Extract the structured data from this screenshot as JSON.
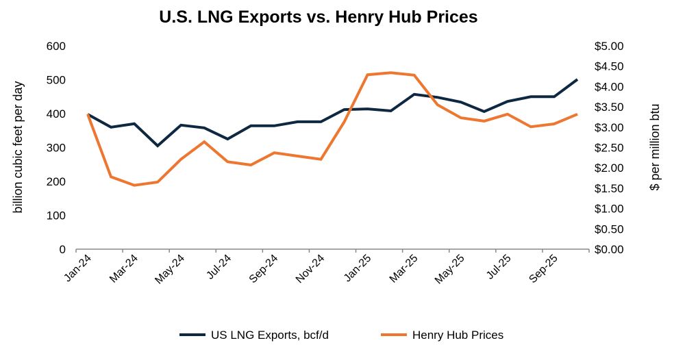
{
  "chart_data": {
    "type": "line",
    "title": "U.S. LNG Exports vs. Henry Hub Prices",
    "ylabel_left": "billion cubic feet per day",
    "ylabel_right": "$ per million btu",
    "ylim_left": [
      0,
      600
    ],
    "ylim_right": [
      0,
      5
    ],
    "yticks_left": [
      "0",
      "100",
      "200",
      "300",
      "400",
      "500",
      "600"
    ],
    "yticks_right": [
      "$0.00",
      "$0.50",
      "$1.00",
      "$1.50",
      "$2.00",
      "$2.50",
      "$3.00",
      "$3.50",
      "$4.00",
      "$4.50",
      "$5.00"
    ],
    "x": [
      "Jan-24",
      "Feb-24",
      "Mar-24",
      "Apr-24",
      "May-24",
      "Jun-24",
      "Jul-24",
      "Aug-24",
      "Sep-24",
      "Oct-24",
      "Nov-24",
      "Dec-24",
      "Jan-25",
      "Feb-25",
      "Mar-25",
      "Apr-25",
      "May-25",
      "Jun-25",
      "Jul-25",
      "Aug-25",
      "Sep-25",
      "Oct-25"
    ],
    "xtick_labels": [
      "Jan-24",
      "Mar-24",
      "May-24",
      "Jul-24",
      "Sep-24",
      "Nov-24",
      "Jan-25",
      "Mar-25",
      "May-25",
      "Jul-25",
      "Sep-25"
    ],
    "grid": false,
    "legend_position": "bottom",
    "series": [
      {
        "name": "US LNG Exports, bcf/d",
        "axis": "left",
        "color": "#0e2841",
        "values": [
          398,
          360,
          370,
          305,
          366,
          358,
          325,
          364,
          364,
          376,
          376,
          412,
          414,
          408,
          457,
          448,
          434,
          406,
          436,
          450,
          450,
          501
        ]
      },
      {
        "name": "Henry Hub Prices",
        "axis": "right",
        "color": "#ed7731",
        "values": [
          3.32,
          1.78,
          1.57,
          1.65,
          2.21,
          2.64,
          2.15,
          2.07,
          2.37,
          2.29,
          2.21,
          3.13,
          4.29,
          4.34,
          4.28,
          3.55,
          3.23,
          3.15,
          3.32,
          3.01,
          3.08,
          3.32
        ]
      }
    ]
  }
}
